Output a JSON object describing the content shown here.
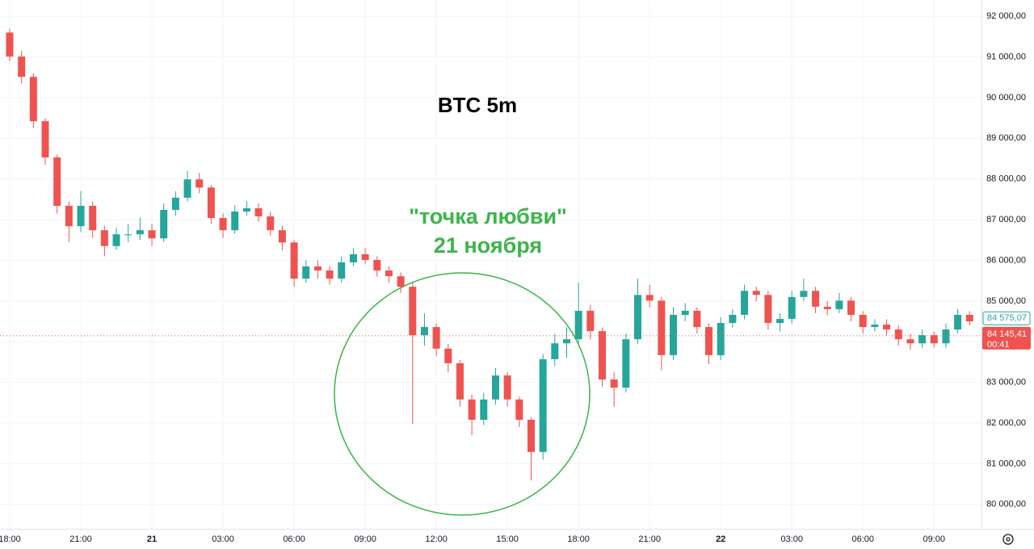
{
  "chart_data": {
    "type": "candlestick",
    "title": "BTC 5m",
    "annotation": [
      "\"точка любви\"",
      "21 ноября"
    ],
    "up_color": "#26a69a",
    "down_color": "#ef5350",
    "annotation_color": "#3cb54a",
    "grid": true,
    "categories": [
      "18:00",
      null,
      null,
      null,
      null,
      null,
      "21:00",
      null,
      null,
      null,
      null,
      null,
      "21",
      null,
      null,
      null,
      null,
      null,
      "03:00",
      null,
      null,
      null,
      null,
      null,
      "06:00",
      null,
      null,
      null,
      null,
      null,
      "09:00",
      null,
      null,
      null,
      null,
      null,
      "12:00",
      null,
      null,
      null,
      null,
      null,
      "15:00",
      null,
      null,
      null,
      null,
      null,
      "18:00",
      null,
      null,
      null,
      null,
      null,
      "21:00",
      null,
      null,
      null,
      null,
      null,
      "22",
      null,
      null,
      null,
      null,
      null,
      "03:00",
      null,
      null,
      null,
      null,
      null,
      "06:00",
      null,
      null,
      null,
      null,
      null,
      "09:00",
      null,
      null,
      null
    ],
    "open": [
      91600,
      91010,
      90510,
      89420,
      88530,
      87340,
      86840,
      87340,
      86740,
      86350,
      86640,
      86640,
      86740,
      86540,
      87240,
      87540,
      87990,
      87790,
      87040,
      86740,
      87200,
      87280,
      87080,
      86740,
      86440,
      85550,
      85850,
      85750,
      85550,
      85950,
      86150,
      86010,
      85750,
      85610,
      85350,
      84160,
      84360,
      83830,
      83470,
      82580,
      82080,
      82580,
      83170,
      82580,
      82080,
      81290,
      83570,
      83960,
      84060,
      84760,
      84260,
      83070,
      82870,
      84060,
      85150,
      85010,
      83670,
      84660,
      84760,
      84360,
      83670,
      84460,
      84660,
      85250,
      85150,
      84460,
      84560,
      85100,
      85250,
      84860,
      84800,
      85010,
      84660,
      84360,
      84420,
      84300,
      84060,
      83960,
      84160,
      83960,
      84300,
      84660
    ],
    "high": [
      91700,
      91150,
      90600,
      89500,
      88600,
      87450,
      87700,
      87450,
      86850,
      86800,
      86900,
      87050,
      86900,
      87400,
      87700,
      88200,
      88150,
      87850,
      87150,
      87350,
      87450,
      87400,
      87200,
      86850,
      86500,
      86000,
      86000,
      85850,
      86100,
      86300,
      86300,
      86100,
      85850,
      85700,
      85450,
      84700,
      84450,
      83950,
      83550,
      82700,
      82750,
      83350,
      83250,
      82650,
      82150,
      83700,
      84200,
      84350,
      85450,
      84900,
      84350,
      83250,
      84200,
      85550,
      85400,
      85100,
      84850,
      84950,
      84850,
      84450,
      84600,
      84800,
      85400,
      85350,
      85250,
      84700,
      85250,
      85550,
      85350,
      85000,
      85200,
      85100,
      84750,
      84550,
      84550,
      84400,
      84200,
      84300,
      84250,
      84450,
      84800,
      84750
    ],
    "low": [
      90900,
      90350,
      89250,
      88350,
      87150,
      86450,
      86700,
      86550,
      86100,
      86250,
      86450,
      86500,
      86350,
      86450,
      87100,
      87450,
      87650,
      86900,
      86550,
      86650,
      87100,
      86950,
      86600,
      86250,
      85350,
      85450,
      85550,
      85400,
      85450,
      85850,
      85900,
      85600,
      85450,
      85200,
      81980,
      83900,
      83650,
      83250,
      82400,
      81700,
      81950,
      82450,
      82400,
      81900,
      80590,
      81100,
      83400,
      83600,
      83950,
      84050,
      82900,
      82400,
      82750,
      83950,
      84850,
      83300,
      83550,
      84500,
      84200,
      83450,
      83550,
      84350,
      84550,
      85000,
      84300,
      84250,
      84450,
      85000,
      84700,
      84650,
      84700,
      84500,
      84200,
      84250,
      84150,
      83900,
      83800,
      83850,
      83850,
      83850,
      84200,
      84400
    ],
    "close": [
      91010,
      90510,
      89420,
      88530,
      87340,
      86840,
      87340,
      86740,
      86350,
      86640,
      86640,
      86740,
      86540,
      87240,
      87540,
      87990,
      87790,
      87040,
      86740,
      87200,
      87280,
      87080,
      86740,
      86440,
      85550,
      85850,
      85750,
      85550,
      85950,
      86150,
      86010,
      85750,
      85610,
      85350,
      84160,
      84360,
      83830,
      83470,
      82580,
      82080,
      82580,
      83170,
      82580,
      82080,
      81290,
      83570,
      83960,
      84060,
      84760,
      84260,
      83070,
      82870,
      84060,
      85150,
      85010,
      83670,
      84660,
      84760,
      84360,
      83670,
      84460,
      84660,
      85250,
      85150,
      84460,
      84560,
      85100,
      85250,
      84860,
      84800,
      85010,
      84660,
      84360,
      84420,
      84300,
      84060,
      83960,
      84160,
      83960,
      84300,
      84660,
      84500
    ],
    "ylim": [
      79400,
      92400
    ],
    "yticks": [
      {
        "value": 80000,
        "label": "80 000,00"
      },
      {
        "value": 81000,
        "label": "81 000,00"
      },
      {
        "value": 82000,
        "label": "82 000,00"
      },
      {
        "value": 83000,
        "label": "83 000,00"
      },
      {
        "value": 84000,
        "label": "84 000,00"
      },
      {
        "value": 85000,
        "label": "85 000,00"
      },
      {
        "value": 86000,
        "label": "86 000,00"
      },
      {
        "value": 87000,
        "label": "87 000,00"
      },
      {
        "value": 88000,
        "label": "88 000,00"
      },
      {
        "value": 89000,
        "label": "89 000,00"
      },
      {
        "value": 90000,
        "label": "90 000,00"
      },
      {
        "value": 91000,
        "label": "91 000,00"
      },
      {
        "value": 92000,
        "label": "92 000,00"
      }
    ],
    "marker": {
      "value": 84575.07,
      "label": "84 575,07"
    },
    "last_price": {
      "value": 84145.41,
      "label": "84 145,41",
      "timer": "00:41"
    }
  }
}
